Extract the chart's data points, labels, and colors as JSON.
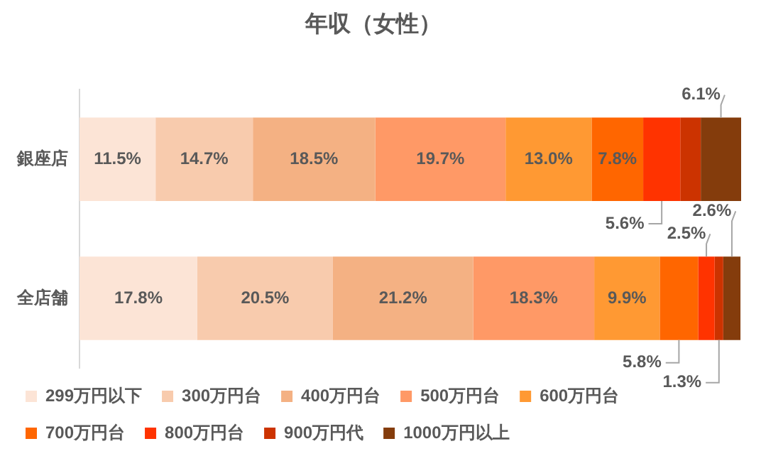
{
  "chart_data": {
    "type": "bar",
    "title": "年収（女性）",
    "orientation": "horizontal",
    "stacked": true,
    "categories": [
      "銀座店",
      "全店舗"
    ],
    "legend": "bottom",
    "grid": false,
    "series": [
      {
        "name": "299万円以下",
        "color": "#fce4d6",
        "values": [
          11.5,
          17.8
        ],
        "value_labels": [
          "11.5%",
          "17.8%"
        ]
      },
      {
        "name": "300万円台",
        "color": "#f8cbad",
        "values": [
          14.7,
          20.5
        ],
        "value_labels": [
          "14.7%",
          "20.5%"
        ]
      },
      {
        "name": "400万円台",
        "color": "#f4b183",
        "values": [
          18.5,
          21.2
        ],
        "value_labels": [
          "18.5%",
          "21.2%"
        ]
      },
      {
        "name": "500万円台",
        "color": "#ff9966",
        "values": [
          19.7,
          18.3
        ],
        "value_labels": [
          "19.7%",
          "18.3%"
        ]
      },
      {
        "name": "600万円台",
        "color": "#ff9933",
        "values": [
          13.0,
          9.9
        ],
        "value_labels": [
          "13.0%",
          "9.9%"
        ]
      },
      {
        "name": "700万円台",
        "color": "#ff6600",
        "values": [
          7.8,
          5.8
        ],
        "value_labels": [
          "7.8%",
          "5.8%"
        ]
      },
      {
        "name": "800万円台",
        "color": "#ff3300",
        "values": [
          5.6,
          2.5
        ],
        "value_labels": [
          "5.6%",
          "2.5%"
        ]
      },
      {
        "name": "900万円代",
        "color": "#cc3300",
        "values": [
          3.1,
          1.3
        ],
        "value_labels": [
          null,
          "1.3%"
        ]
      },
      {
        "name": "1000万円以上",
        "color": "#843c0c",
        "values": [
          6.1,
          2.6
        ],
        "value_labels": [
          "6.1%",
          "2.6%"
        ]
      }
    ]
  }
}
